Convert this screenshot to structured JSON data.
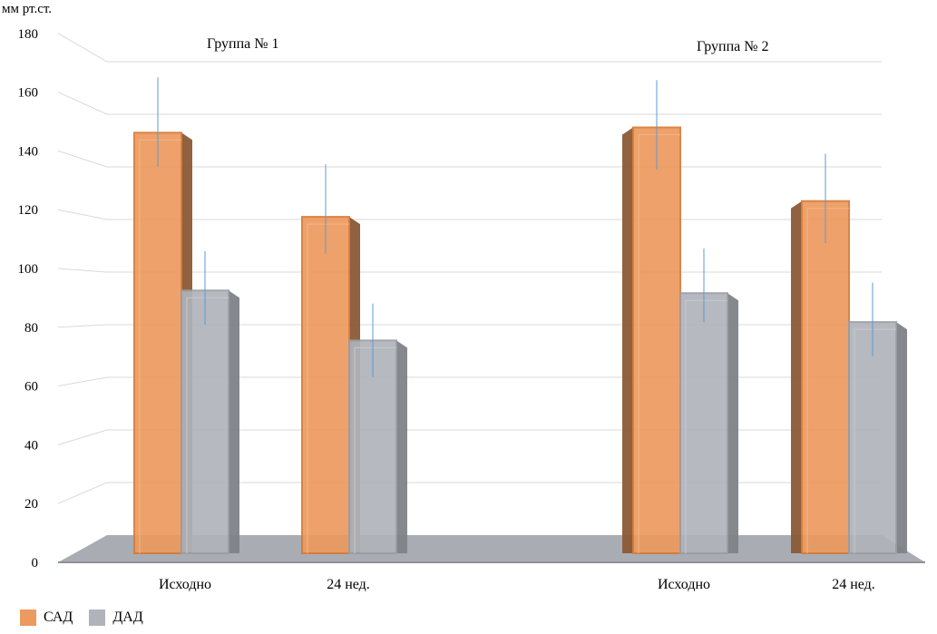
{
  "chart_data": {
    "type": "bar",
    "ylabel": "мм рт.ст.",
    "ylim": [
      0,
      180
    ],
    "yticks": [
      0,
      20,
      40,
      60,
      80,
      100,
      120,
      140,
      160,
      180
    ],
    "categories": [
      "Исходно",
      "24 нед.",
      "Исходно",
      "24 нед."
    ],
    "group_labels": [
      "Группа № 1",
      "Группа № 2"
    ],
    "series": [
      {
        "name": "САД",
        "values": [
          153,
          121,
          155,
          127
        ],
        "error_low": [
          140,
          107,
          139,
          111
        ],
        "error_high": [
          174,
          141,
          173,
          145
        ],
        "color": "#ED9A5E"
      },
      {
        "name": "ДАД",
        "values": [
          93,
          74,
          92,
          81
        ],
        "error_low": [
          80,
          60,
          81,
          68
        ],
        "error_high": [
          108,
          88,
          109,
          96
        ],
        "color": "#B0B4BA"
      }
    ],
    "grid": true
  },
  "colors": {
    "sad_dark": "#8A5A35",
    "dad_dark": "#7E8388",
    "floor": "#A9ADB3",
    "error": "#5B9BD5"
  }
}
